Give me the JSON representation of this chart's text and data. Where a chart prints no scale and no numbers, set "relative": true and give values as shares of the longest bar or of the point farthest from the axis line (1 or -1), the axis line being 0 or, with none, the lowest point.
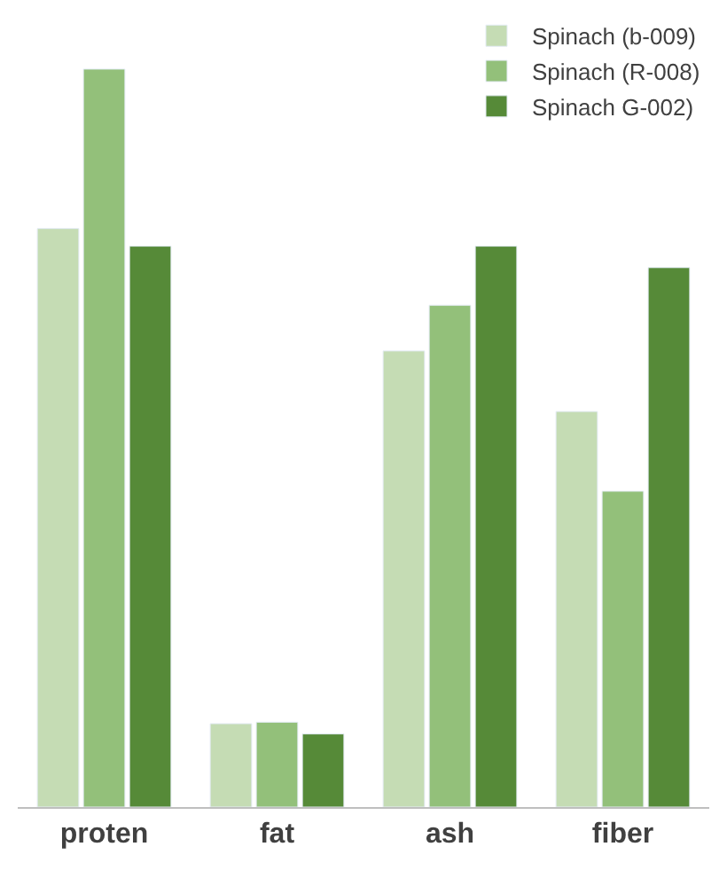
{
  "chart_data": {
    "type": "bar",
    "relative": true,
    "categories": [
      "proten",
      "fat",
      "ash",
      "fiber"
    ],
    "series": [
      {
        "name": "Spinach (b-009)",
        "color": "#c5dcb4",
        "values": [
          0.784,
          0.113,
          0.618,
          0.536
        ]
      },
      {
        "name": "Spinach (R-008)",
        "color": "#93c07a",
        "values": [
          1.0,
          0.115,
          0.68,
          0.428
        ]
      },
      {
        "name": "Spinach G-002)",
        "color": "#568a38",
        "values": [
          0.76,
          0.099,
          0.76,
          0.731
        ]
      }
    ],
    "legend": "top right"
  }
}
